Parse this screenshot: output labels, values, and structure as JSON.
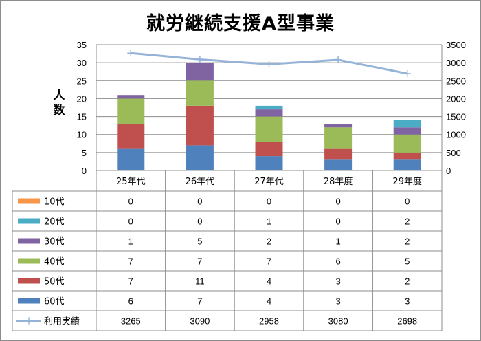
{
  "chart_data": {
    "type": "bar",
    "stacked": true,
    "title": "就労継続支援A型事業",
    "ylabel": "人数",
    "categories": [
      "25年代",
      "26年代",
      "27年代",
      "28年度",
      "29年度"
    ],
    "ylim": [
      0,
      35
    ],
    "y_ticks": [
      0,
      5,
      10,
      15,
      20,
      25,
      30,
      35
    ],
    "y2lim": [
      0,
      3500
    ],
    "y2_ticks": [
      0,
      500,
      1000,
      1500,
      2000,
      2500,
      3000,
      3500
    ],
    "grid": true,
    "legend_placement": "data-table",
    "series": [
      {
        "name": "10代",
        "color": "#F79646",
        "values": [
          0,
          0,
          0,
          0,
          0
        ]
      },
      {
        "name": "20代",
        "color": "#4BACC6",
        "values": [
          0,
          0,
          1,
          0,
          2
        ]
      },
      {
        "name": "30代",
        "color": "#8064A2",
        "values": [
          1,
          5,
          2,
          1,
          2
        ]
      },
      {
        "name": "40代",
        "color": "#9BBB59",
        "values": [
          7,
          7,
          7,
          6,
          5
        ]
      },
      {
        "name": "50代",
        "color": "#C0504D",
        "values": [
          7,
          11,
          4,
          3,
          2
        ]
      },
      {
        "name": "60代",
        "color": "#4F81BD",
        "values": [
          6,
          7,
          4,
          3,
          3
        ]
      }
    ],
    "line_series": {
      "name": "利用実績",
      "color": "#95B3D7",
      "axis": "secondary",
      "values": [
        3265,
        3090,
        2958,
        3080,
        2698
      ]
    }
  }
}
